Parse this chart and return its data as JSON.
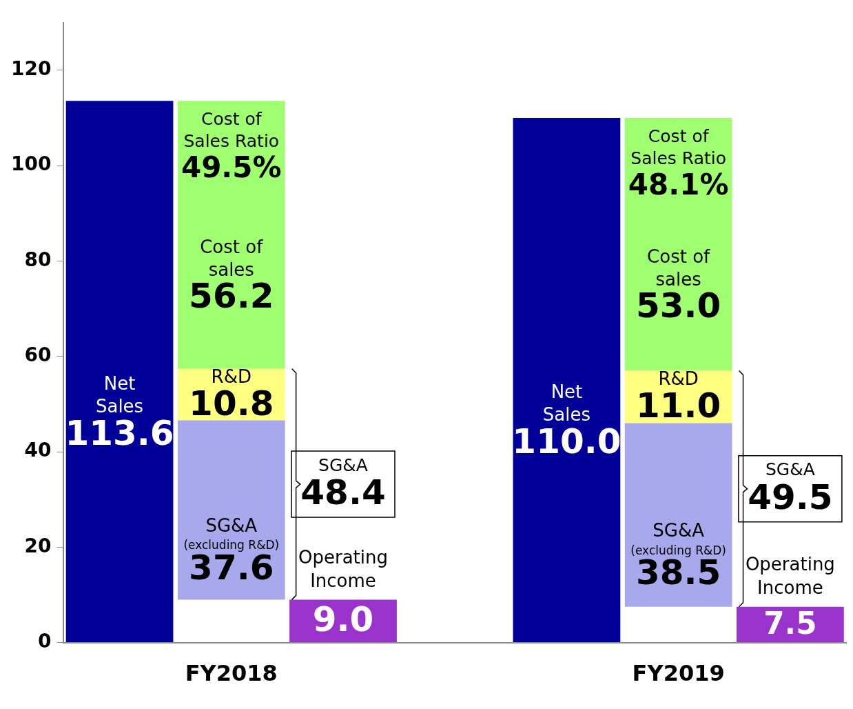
{
  "chart_data": {
    "type": "bar",
    "categories": [
      null,
      "FY2018",
      null,
      null,
      null,
      "FY2019",
      null
    ],
    "ylim": [
      0,
      130
    ],
    "yticks": [
      0,
      20,
      40,
      60,
      80,
      100,
      120
    ],
    "series": [
      {
        "name": "Net Sales",
        "color": "#000099",
        "values": [
          113.6,
          null,
          null,
          null,
          110.0,
          null,
          null
        ],
        "value_labels": [
          "113.6",
          null,
          null,
          null,
          "110.0",
          null,
          null
        ]
      },
      {
        "name": "SG&A (excluding R&D)",
        "color": "#a8a8ec",
        "base": [
          null,
          9.0,
          null,
          null,
          null,
          7.5,
          null
        ],
        "values": [
          null,
          37.6,
          null,
          null,
          null,
          38.5,
          null
        ],
        "value_labels": [
          null,
          "37.6",
          null,
          null,
          null,
          "38.5",
          null
        ]
      },
      {
        "name": "R&D",
        "color": "#ffff80",
        "base": [
          null,
          46.6,
          null,
          null,
          null,
          46.0,
          null
        ],
        "values": [
          null,
          10.8,
          null,
          null,
          null,
          11.0,
          null
        ],
        "value_labels": [
          null,
          "10.8",
          null,
          null,
          null,
          "11.0",
          null
        ]
      },
      {
        "name": "Cost of sales",
        "color": "#a0ff70",
        "base": [
          null,
          57.4,
          null,
          null,
          null,
          57.0,
          null
        ],
        "values": [
          null,
          56.2,
          null,
          null,
          null,
          53.0,
          null
        ],
        "value_labels": [
          null,
          "56.2",
          null,
          null,
          null,
          "53.0",
          null
        ]
      },
      {
        "name": "Operating Income",
        "color": "#9933cc",
        "values": [
          null,
          null,
          9.0,
          null,
          null,
          null,
          7.5
        ],
        "value_labels": [
          null,
          null,
          "9.0",
          null,
          null,
          null,
          "7.5"
        ]
      }
    ],
    "annotations": [
      "Cost of Sales Ratio 49.5%",
      "SG&A 48.4",
      "Cost of Sales Ratio 48.1%",
      "SG&A 49.5"
    ]
  }
}
